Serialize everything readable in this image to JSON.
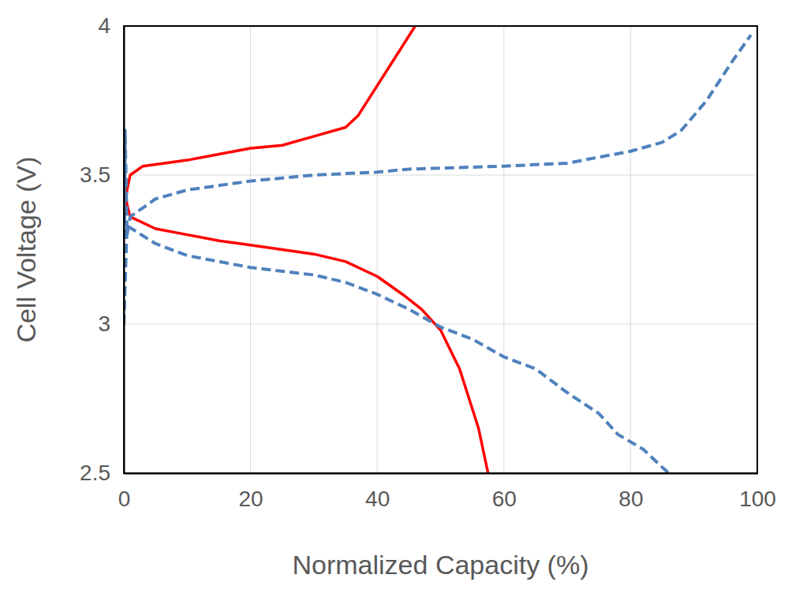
{
  "chart_data": {
    "type": "line",
    "x_label": "Normalized Capacity (%)",
    "y_label": "Cell Voltage (V)",
    "xlim": [
      0,
      100
    ],
    "xticks": [
      0,
      20,
      40,
      60,
      80,
      100
    ],
    "ylim": [
      2.5,
      4
    ],
    "yticks": [
      2.5,
      3,
      3.5,
      4
    ],
    "grid": true,
    "series": [
      {
        "color": "#ff0000",
        "line_style": "solid",
        "x": [
          0,
          0.5,
          1,
          3,
          10,
          15,
          20,
          25,
          30,
          35,
          37,
          40,
          43,
          46
        ],
        "values": [
          3.35,
          3.45,
          3.5,
          3.53,
          3.55,
          3.57,
          3.59,
          3.6,
          3.63,
          3.66,
          3.7,
          3.8,
          3.9,
          4.0
        ]
      },
      {
        "color": "#ff0000",
        "line_style": "solid",
        "x": [
          0,
          0.5,
          1,
          5,
          10,
          15,
          20,
          25,
          30,
          35,
          40,
          44,
          47,
          50,
          53,
          56,
          57.5
        ],
        "values": [
          3.5,
          3.4,
          3.36,
          3.32,
          3.3,
          3.28,
          3.265,
          3.25,
          3.235,
          3.21,
          3.16,
          3.1,
          3.05,
          2.98,
          2.85,
          2.65,
          2.5
        ]
      },
      {
        "color": "#4f81bd",
        "line_style": "dashed",
        "x": [
          0,
          0.2,
          0.5,
          1,
          5,
          10,
          20,
          30,
          40,
          45,
          60,
          70,
          80,
          85,
          88,
          92,
          96,
          99
        ],
        "values": [
          3.0,
          3.65,
          3.3,
          3.36,
          3.42,
          3.45,
          3.48,
          3.5,
          3.51,
          3.52,
          3.53,
          3.54,
          3.58,
          3.61,
          3.65,
          3.75,
          3.88,
          3.97
        ]
      },
      {
        "color": "#4f81bd",
        "line_style": "dashed",
        "x": [
          0,
          0.5,
          5,
          10,
          20,
          30,
          35,
          40,
          45,
          50,
          55,
          60,
          65,
          70,
          75,
          78,
          82,
          86
        ],
        "values": [
          3.0,
          3.33,
          3.27,
          3.23,
          3.19,
          3.165,
          3.14,
          3.1,
          3.05,
          2.99,
          2.95,
          2.89,
          2.85,
          2.77,
          2.7,
          2.63,
          2.58,
          2.5
        ]
      }
    ]
  }
}
